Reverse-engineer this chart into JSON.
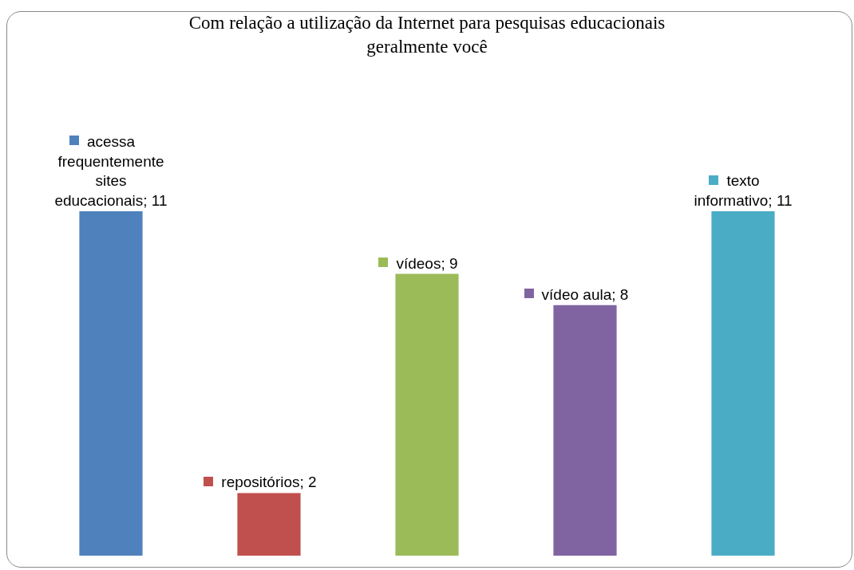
{
  "chart_data": {
    "type": "bar",
    "title": "Com relação a utilização da Internet para pesquisas educacionais geralmente você",
    "categories": [
      null,
      null,
      null,
      null,
      null
    ],
    "values": [
      11,
      2,
      9,
      8,
      11
    ],
    "value_labels": [
      "acessa frequentemente sites educacionais; 11",
      "repositórios; 2",
      "vídeos; 9",
      "vídeo aula; 8",
      "texto informativo; 11"
    ],
    "colors": [
      "#4f81bd",
      "#c0504d",
      "#9bbb59",
      "#8064a2",
      "#4bacc6"
    ]
  }
}
